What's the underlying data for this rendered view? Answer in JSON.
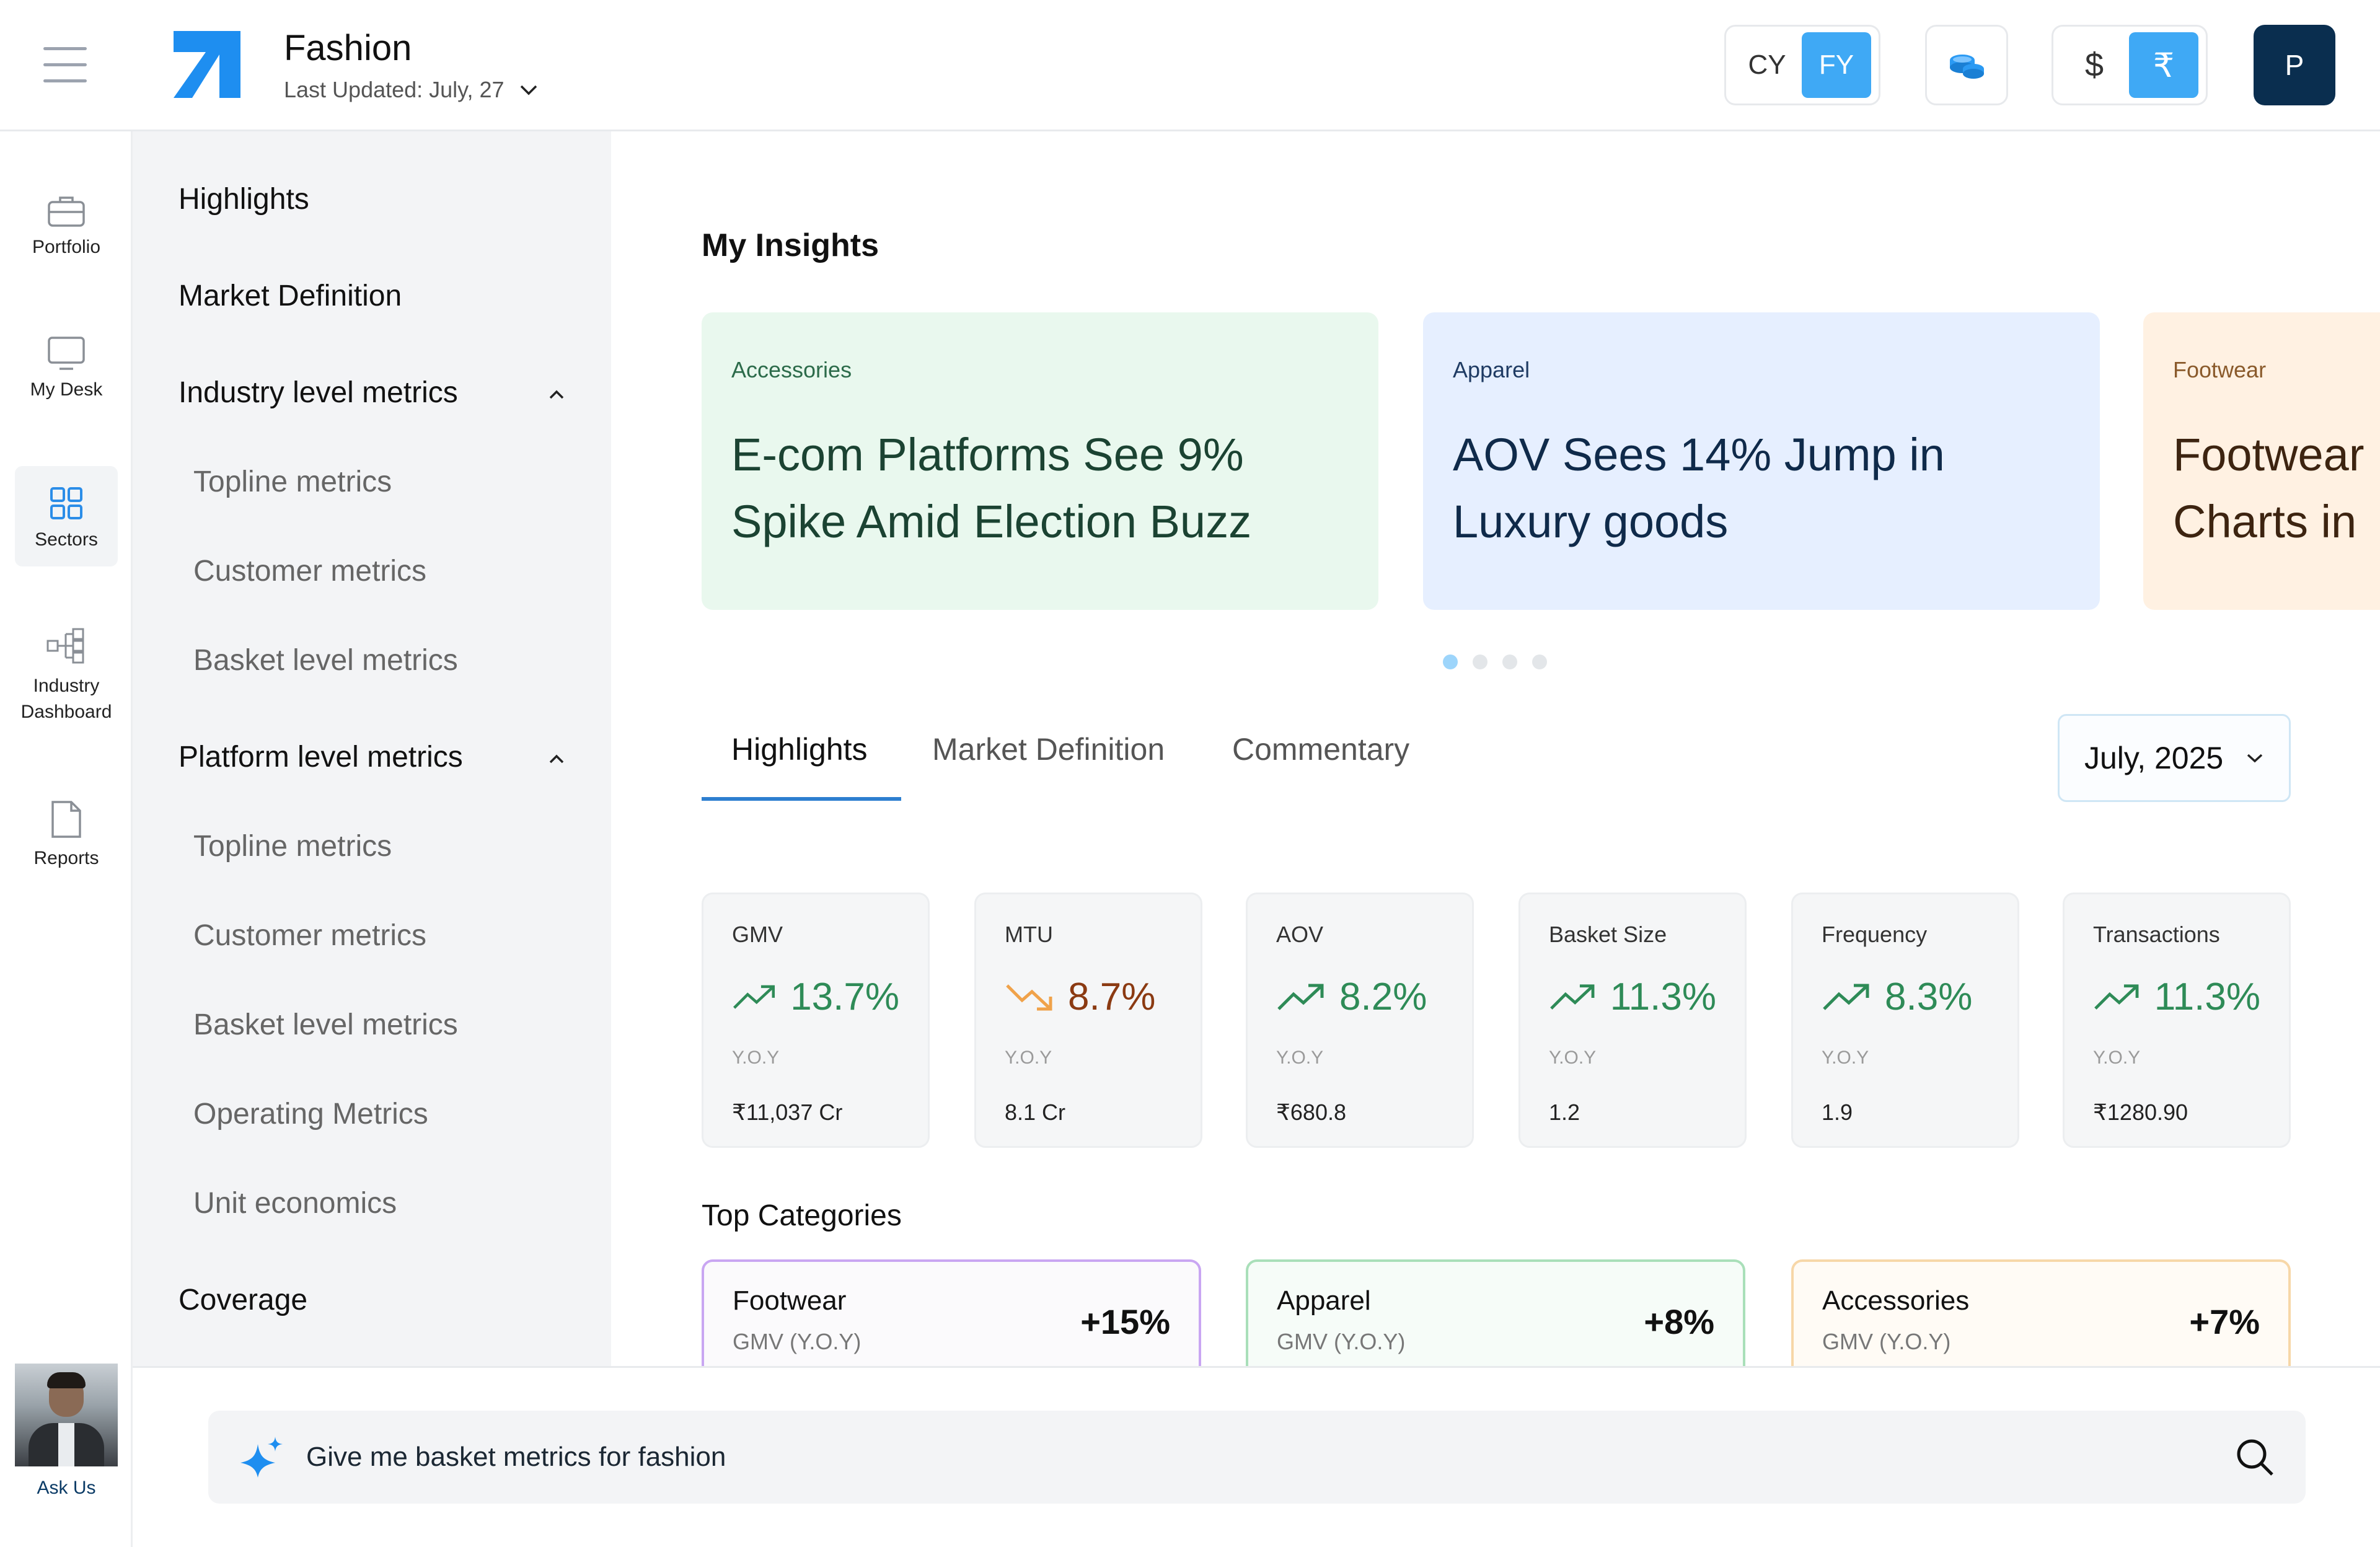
{
  "header": {
    "title": "Fashion",
    "last_updated": "Last Updated: July, 27",
    "period_toggle": [
      "CY",
      "FY"
    ],
    "period_active": "FY",
    "currency_toggle": [
      "$",
      "₹"
    ],
    "currency_active": "₹",
    "profile_initial": "P"
  },
  "rail": {
    "items": [
      {
        "label": "Portfolio",
        "icon": "briefcase-icon"
      },
      {
        "label": "My Desk",
        "icon": "monitor-icon"
      },
      {
        "label": "Sectors",
        "icon": "grid-icon",
        "active": true
      },
      {
        "label": "Industry Dashboard",
        "label_line1": "Industry",
        "label_line2": "Dashboard",
        "icon": "hierarchy-icon"
      },
      {
        "label": "Reports",
        "icon": "file-icon"
      }
    ],
    "ask_us": "Ask Us"
  },
  "sidebar": {
    "items": [
      {
        "label": "Highlights",
        "level": 0
      },
      {
        "label": "Market Definition",
        "level": 0
      },
      {
        "label": "Industry level metrics",
        "level": 0,
        "expanded": true
      },
      {
        "label": "Topline metrics",
        "level": 1
      },
      {
        "label": "Customer metrics",
        "level": 1
      },
      {
        "label": "Basket level metrics",
        "level": 1
      },
      {
        "label": "Platform level metrics",
        "level": 0,
        "expanded": true
      },
      {
        "label": "Topline metrics",
        "level": 1
      },
      {
        "label": "Customer metrics",
        "level": 1
      },
      {
        "label": "Basket level metrics",
        "level": 1
      },
      {
        "label": "Operating Metrics",
        "level": 1
      },
      {
        "label": "Unit economics",
        "level": 1
      },
      {
        "label": "Coverage",
        "level": 0
      }
    ]
  },
  "insights": {
    "title": "My Insights",
    "cards": [
      {
        "tag": "Accessories",
        "headline_line1": "E-com Platforms See 9%",
        "headline_line2": "Spike Amid Election Buzz",
        "bg": "#e9f8ee",
        "color": "#1b4332"
      },
      {
        "tag": "Apparel",
        "headline_line1": "AOV Sees 14% Jump in",
        "headline_line2": "Luxury goods",
        "bg": "#e6efff",
        "color": "#0f2a4a"
      },
      {
        "tag": "Footwear",
        "headline_line1": "Footwear",
        "headline_line2": "Charts in",
        "bg": "#fff1e2",
        "color": "#3d2410"
      }
    ],
    "pager_count": 4,
    "pager_active": 0
  },
  "tabs": {
    "items": [
      "Highlights",
      "Market Definition",
      "Commentary"
    ],
    "active": "Highlights",
    "month": "July, 2025"
  },
  "metrics": [
    {
      "label": "GMV",
      "value": "13.7%",
      "trend": "up",
      "yoy": "Y.O.Y",
      "abs": "₹11,037 Cr",
      "color": "#2e8b57"
    },
    {
      "label": "MTU",
      "value": "8.7%",
      "trend": "down",
      "yoy": "Y.O.Y",
      "abs": "8.1 Cr",
      "color": "#8b3a12"
    },
    {
      "label": "AOV",
      "value": "8.2%",
      "trend": "up",
      "yoy": "Y.O.Y",
      "abs": "₹680.8",
      "color": "#2e8b57"
    },
    {
      "label": "Basket Size",
      "value": "11.3%",
      "trend": "up",
      "yoy": "Y.O.Y",
      "abs": "1.2",
      "color": "#2e8b57"
    },
    {
      "label": "Frequency",
      "value": "8.3%",
      "trend": "up",
      "yoy": "Y.O.Y",
      "abs": "1.9",
      "color": "#2e8b57"
    },
    {
      "label": "Transactions",
      "value": "11.3%",
      "trend": "up",
      "yoy": "Y.O.Y",
      "abs": "₹1280.90",
      "color": "#2e8b57"
    }
  ],
  "top_categories": {
    "title": "Top Categories",
    "items": [
      {
        "name": "Footwear",
        "sub": "GMV (Y.O.Y)",
        "pct": "+15%",
        "border": "#c9a6f2",
        "bg": "#fbfafc"
      },
      {
        "name": "Apparel",
        "sub": "GMV (Y.O.Y)",
        "pct": "+8%",
        "border": "#a9dfb9",
        "bg": "#f6fcf8"
      },
      {
        "name": "Accessories",
        "sub": "GMV (Y.O.Y)",
        "pct": "+7%",
        "border": "#f7d7a8",
        "bg": "#fffbf5"
      }
    ]
  },
  "prompt": {
    "text": "Give me basket metrics for fashion"
  },
  "colors": {
    "accent": "#3fa9f5",
    "brand_dark": "#0a2e4f",
    "positive": "#2e8b57"
  }
}
